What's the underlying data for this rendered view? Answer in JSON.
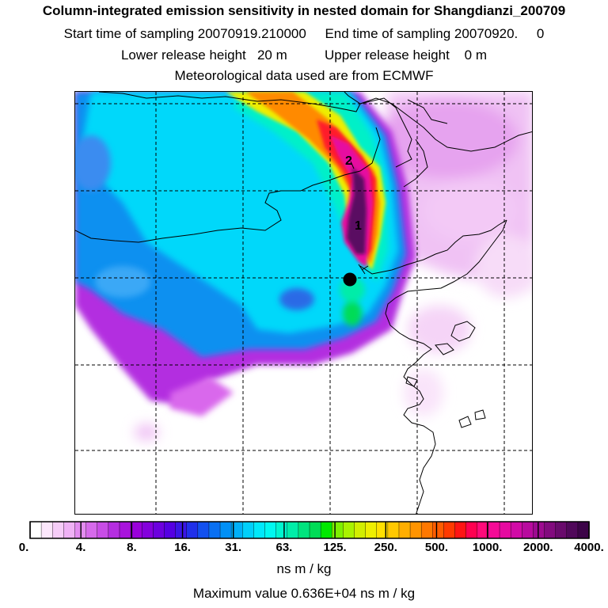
{
  "title": {
    "line1": "Column-integrated emission sensitivity in nested domain for Shangdianzi_200709",
    "line2": "Start time of sampling 20070919.210000     End time of sampling 20070920.     0",
    "line3": "Lower release height   20 m          Upper release height    0 m",
    "line4": "Meteorological data used are from ECMWF"
  },
  "map": {
    "markers": [
      {
        "label": "2"
      },
      {
        "label": "1"
      }
    ],
    "receptor": "black-dot"
  },
  "colorbar": {
    "labels": [
      "0.",
      "4.",
      "8.",
      "16.",
      "31.",
      "63.",
      "125.",
      "250.",
      "500.",
      "1000.",
      "2000.",
      "4000."
    ],
    "colors": [
      "#ffffff",
      "#fbe6fb",
      "#f6ccf8",
      "#efb1f5",
      "#e38cf0",
      "#d66aeb",
      "#c84de6",
      "#b52ee0",
      "#a814dc",
      "#9a00db",
      "#8400dc",
      "#6c00de",
      "#5500e2",
      "#3a16e6",
      "#2030ea",
      "#1250ef",
      "#0a70f2",
      "#0090f6",
      "#00b0f8",
      "#00cffa",
      "#00e8fa",
      "#00f8f0",
      "#00f5cf",
      "#00eda8",
      "#00e47e",
      "#00dc56",
      "#00e800",
      "#7ef000",
      "#a9f200",
      "#d2ee00",
      "#eeee00",
      "#ffe000",
      "#ffc800",
      "#ffae00",
      "#ff9400",
      "#ff7800",
      "#ff5c00",
      "#ff3a00",
      "#ff1414",
      "#ff0050",
      "#ff0a7a",
      "#f50a96",
      "#e60aa0",
      "#d10aa6",
      "#b80a9e",
      "#9d0a90",
      "#820a7e",
      "#690a6c",
      "#50085a",
      "#3c0448"
    ],
    "units": "ns m / kg",
    "max_text": "Maximum value  0.636E+04 ns m / kg"
  }
}
